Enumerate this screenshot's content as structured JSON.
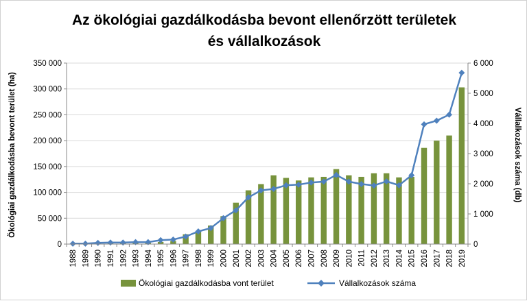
{
  "chart_data": {
    "type": "bar",
    "title_lines": [
      "Az ökológiai gazdálkodásba bevont ellenőrzött területek",
      "és vállalkozások"
    ],
    "categories": [
      "1988",
      "1989",
      "1990",
      "1991",
      "1992",
      "1993",
      "1994",
      "1995",
      "1996",
      "1997",
      "1998",
      "1999",
      "2000",
      "2001",
      "2002",
      "2003",
      "2004",
      "2005",
      "2006",
      "2007",
      "2008",
      "2009",
      "2010",
      "2011",
      "2012",
      "2013",
      "2014",
      "2015",
      "2016",
      "2017",
      "2018",
      "2019"
    ],
    "ylabel": "Ökológiai gazdálkodásba bevont terület (ha)",
    "y2label": "Vállalkozások száma (db)",
    "ylim": [
      0,
      350000
    ],
    "y2lim": [
      0,
      6000
    ],
    "yticks": [
      "0",
      "50 000",
      "100 000",
      "150 000",
      "200 000",
      "250 000",
      "300 000",
      "350 000"
    ],
    "y2ticks": [
      "0",
      "1 000",
      "2 000",
      "3 000",
      "4 000",
      "5 000",
      "6 000"
    ],
    "grid": true,
    "legend_position": "bottom",
    "series": [
      {
        "name": "Ökológiai gazdálkodásba vont terület",
        "kind": "bar",
        "axis": "left",
        "color": "#77933c",
        "values": [
          1000,
          1000,
          1500,
          1500,
          1500,
          2000,
          2500,
          4000,
          6000,
          19000,
          25000,
          36000,
          54000,
          80000,
          104000,
          116000,
          133000,
          128000,
          123000,
          129000,
          130000,
          145000,
          133000,
          130000,
          137000,
          137000,
          129000,
          130000,
          186000,
          200000,
          210000,
          303000
        ]
      },
      {
        "name": "Vállalkozások száma",
        "kind": "line",
        "axis": "right",
        "color": "#4f81bd",
        "values": [
          15,
          15,
          40,
          50,
          50,
          65,
          65,
          130,
          150,
          250,
          420,
          530,
          860,
          1120,
          1550,
          1780,
          1830,
          1950,
          1970,
          2040,
          2070,
          2290,
          2070,
          1990,
          1940,
          2080,
          1950,
          2280,
          3970,
          4090,
          4290,
          5680
        ]
      }
    ]
  }
}
